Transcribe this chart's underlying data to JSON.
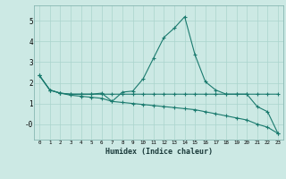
{
  "xlabel": "Humidex (Indice chaleur)",
  "x_ticks": [
    0,
    1,
    2,
    3,
    4,
    5,
    6,
    7,
    8,
    9,
    10,
    11,
    12,
    13,
    14,
    15,
    16,
    17,
    18,
    19,
    20,
    21,
    22,
    23
  ],
  "ylim": [
    -0.75,
    5.75
  ],
  "xlim": [
    -0.5,
    23.5
  ],
  "bg_color": "#cce9e4",
  "grid_color": "#aad4cc",
  "line_color": "#1a7a6e",
  "line1_x": [
    0,
    1,
    2,
    3,
    4,
    5,
    6,
    7,
    8,
    9,
    10,
    11,
    12,
    13,
    14,
    15,
    16,
    17,
    18,
    19,
    20,
    21,
    22,
    23
  ],
  "line1_y": [
    2.35,
    1.65,
    1.5,
    1.45,
    1.45,
    1.45,
    1.5,
    1.1,
    1.55,
    1.6,
    2.2,
    3.2,
    4.2,
    4.65,
    5.2,
    3.35,
    2.05,
    1.65,
    1.45,
    1.45,
    1.45,
    0.85,
    0.6,
    -0.45
  ],
  "line2_x": [
    0,
    1,
    2,
    3,
    4,
    5,
    6,
    7,
    8,
    9,
    10,
    11,
    12,
    13,
    14,
    15,
    16,
    17,
    18,
    19,
    20,
    21,
    22,
    23
  ],
  "line2_y": [
    2.35,
    1.65,
    1.5,
    1.45,
    1.45,
    1.45,
    1.45,
    1.45,
    1.45,
    1.45,
    1.45,
    1.45,
    1.45,
    1.45,
    1.45,
    1.45,
    1.45,
    1.45,
    1.45,
    1.45,
    1.45,
    1.45,
    1.45,
    1.45
  ],
  "line3_x": [
    0,
    1,
    2,
    3,
    4,
    5,
    6,
    7,
    8,
    9,
    10,
    11,
    12,
    13,
    14,
    15,
    16,
    17,
    18,
    19,
    20,
    21,
    22,
    23
  ],
  "line3_y": [
    2.35,
    1.65,
    1.5,
    1.4,
    1.35,
    1.3,
    1.25,
    1.1,
    1.05,
    1.0,
    0.95,
    0.9,
    0.85,
    0.8,
    0.75,
    0.7,
    0.6,
    0.5,
    0.4,
    0.3,
    0.2,
    0.0,
    -0.15,
    -0.45
  ],
  "yticks": [
    0,
    1,
    2,
    3,
    4,
    5
  ],
  "ytick_labels": [
    "-0",
    "1",
    "2",
    "3",
    "4",
    "5"
  ]
}
